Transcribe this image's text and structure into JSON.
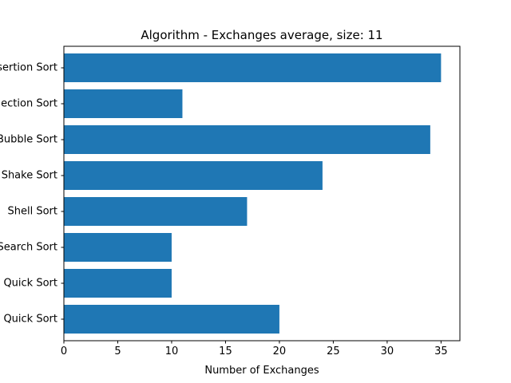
{
  "chart_data": {
    "type": "bar",
    "orientation": "horizontal",
    "title": "Algorithm - Exchanges average, size: 11",
    "xlabel": "Number of Exchanges",
    "ylabel": "",
    "xlim": [
      0,
      36.75
    ],
    "xticks": [
      0,
      5,
      10,
      15,
      20,
      25,
      30,
      35
    ],
    "categories": [
      "Insertion Sort",
      "Selection Sort",
      "Bubble Sort",
      "Shake Sort",
      "Shell Sort",
      "Binary Search Sort",
      "Quick Sort",
      "Quick Sort"
    ],
    "values": [
      35,
      11,
      34,
      24,
      17,
      10,
      10,
      20
    ],
    "bar_color": "#1f77b4",
    "grid": false,
    "legend": "none"
  }
}
